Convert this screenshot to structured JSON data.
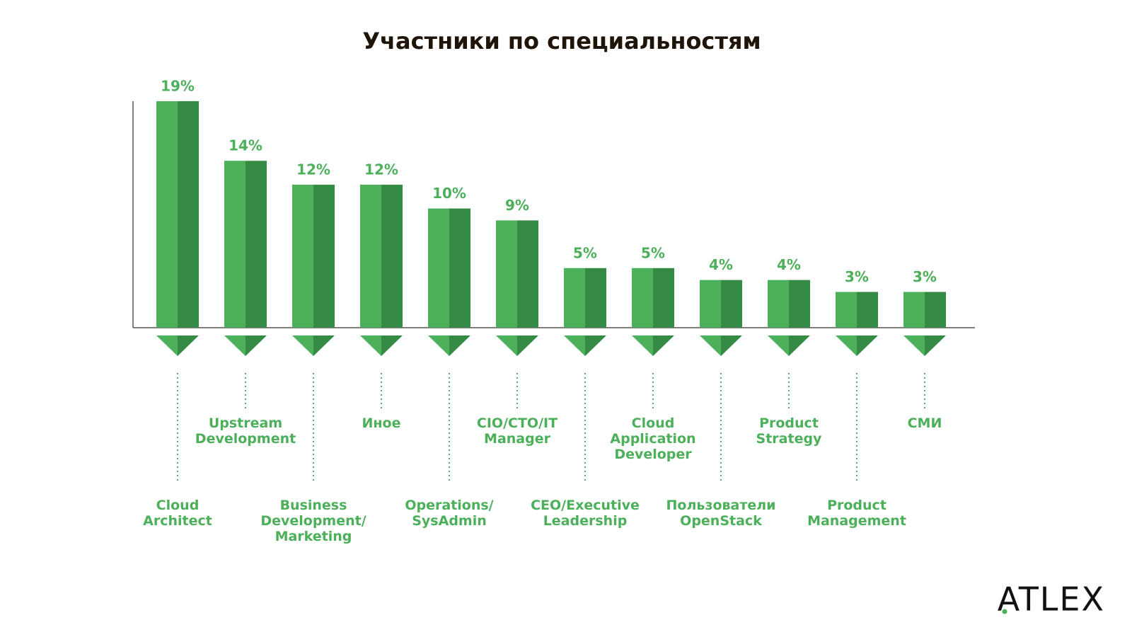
{
  "chart_data": {
    "type": "bar",
    "title": "Участники по специальностям",
    "categories": [
      "Cloud\nArchitect",
      "Upstream\nDevelopment",
      "Business\nDevelopment/\nMarketing",
      "Иное",
      "Operations/\nSysAdmin",
      "CIO/CTO/IT\nManager",
      "CEO/Executive\nLeadership",
      "Cloud\nApplication\nDeveloper",
      "Пользователи\nOpenStack",
      "Product\nStrategy",
      "Product\nManagement",
      "СМИ"
    ],
    "values": [
      19,
      14,
      12,
      12,
      10,
      9,
      5,
      5,
      4,
      4,
      3,
      3
    ],
    "value_labels": [
      "19%",
      "14%",
      "12%",
      "12%",
      "10%",
      "9%",
      "5%",
      "5%",
      "4%",
      "4%",
      "3%",
      "3%"
    ],
    "colors": [
      "#4caf5a",
      "#358b43"
    ],
    "ylim": [
      0,
      19
    ]
  },
  "logo": "ATLEX"
}
